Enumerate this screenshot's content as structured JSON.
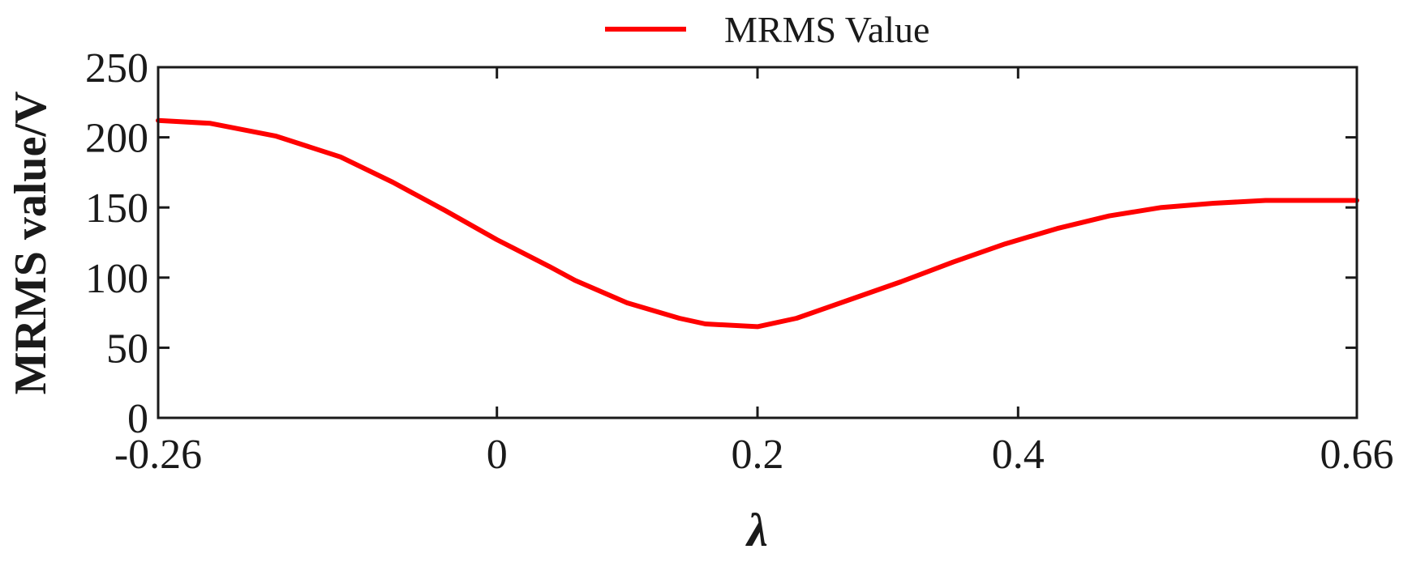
{
  "chart_data": {
    "type": "line",
    "title": "",
    "xlabel": "λ",
    "ylabel": "MRMS value/V",
    "xlim": [
      -0.26,
      0.66
    ],
    "ylim": [
      0,
      250
    ],
    "xticks": [
      -0.26,
      0,
      0.2,
      0.4,
      0.66
    ],
    "xtick_labels": [
      "-0.26",
      "0",
      "0.2",
      "0.4",
      "0.66"
    ],
    "yticks": [
      0,
      50,
      100,
      150,
      200,
      250
    ],
    "ytick_labels": [
      "0",
      "50",
      "100",
      "150",
      "200",
      "250"
    ],
    "grid": false,
    "legend_position": "top-center",
    "series": [
      {
        "name": "MRMS Value",
        "color": "#ff0000",
        "x": [
          -0.26,
          -0.22,
          -0.17,
          -0.12,
          -0.08,
          -0.04,
          0,
          0.04,
          0.06,
          0.1,
          0.14,
          0.16,
          0.2,
          0.23,
          0.27,
          0.31,
          0.35,
          0.39,
          0.43,
          0.47,
          0.51,
          0.55,
          0.59,
          0.62,
          0.66
        ],
        "y": [
          212,
          210,
          201,
          186,
          168,
          148,
          127,
          108,
          98,
          82,
          71,
          67,
          65,
          71,
          84,
          97,
          111,
          124,
          135,
          144,
          150,
          153,
          155,
          155,
          155
        ]
      }
    ]
  }
}
